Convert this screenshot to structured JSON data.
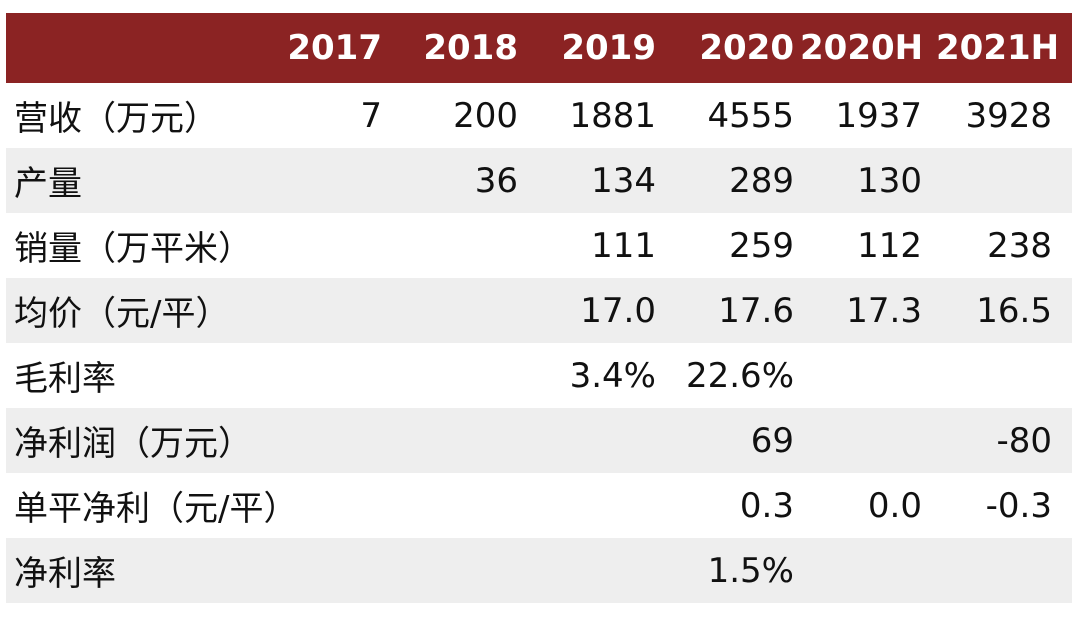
{
  "chart_data": {
    "type": "table",
    "header_color": "#8b2323",
    "stripe_color": "#eeeeee",
    "columns": [
      "",
      "2017",
      "2018",
      "2019",
      "2020",
      "2020H",
      "2021H"
    ],
    "rows": [
      {
        "label": "营收（万元）",
        "values": [
          "7",
          "200",
          "1881",
          "4555",
          "1937",
          "3928"
        ]
      },
      {
        "label": "产量",
        "values": [
          "",
          "36",
          "134",
          "289",
          "130",
          ""
        ]
      },
      {
        "label": "销量（万平米）",
        "values": [
          "",
          "",
          "111",
          "259",
          "112",
          "238"
        ]
      },
      {
        "label": "均价（元/平）",
        "values": [
          "",
          "",
          "17.0",
          "17.6",
          "17.3",
          "16.5"
        ]
      },
      {
        "label": "毛利率",
        "values": [
          "",
          "",
          "3.4%",
          "22.6%",
          "",
          ""
        ]
      },
      {
        "label": "净利润（万元）",
        "values": [
          "",
          "",
          "",
          "69",
          "",
          "-80"
        ]
      },
      {
        "label": "单平净利（元/平）",
        "values": [
          "",
          "",
          "",
          "0.3",
          "0.0",
          "-0.3"
        ]
      },
      {
        "label": "净利率",
        "values": [
          "",
          "",
          "",
          "1.5%",
          "",
          ""
        ]
      }
    ]
  }
}
